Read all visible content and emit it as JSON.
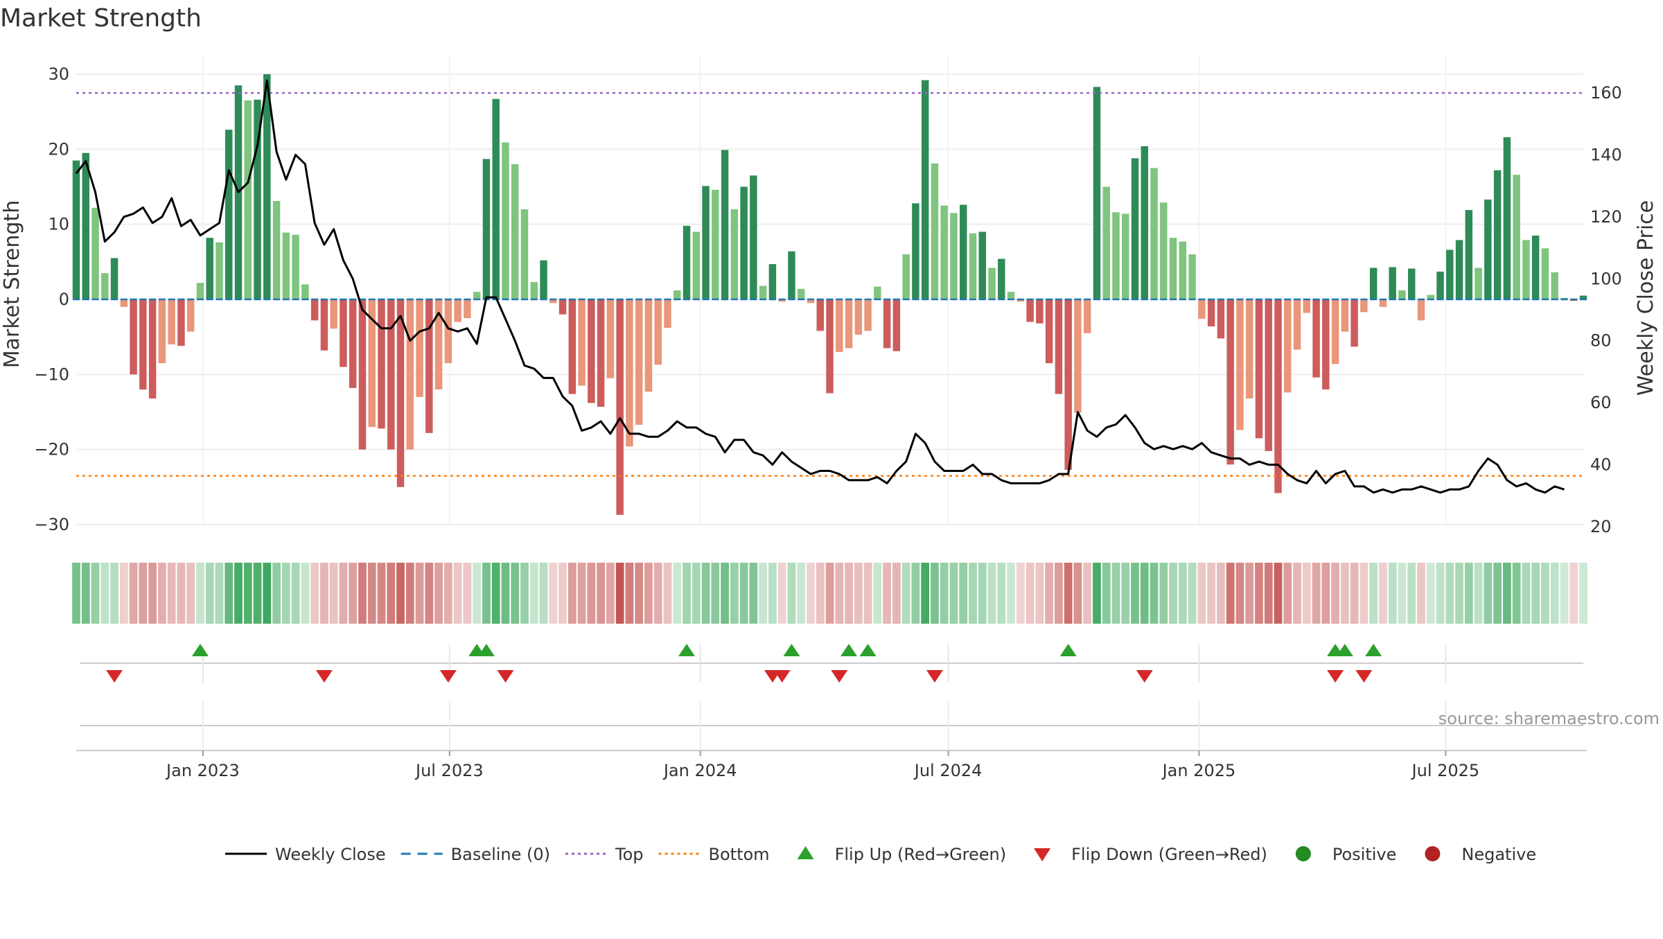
{
  "chart_data": {
    "type": "bar",
    "title": "Market Strength",
    "ylabel": "Market Strength",
    "y2label": "Weekly Close Price",
    "ylim": [
      -33,
      32
    ],
    "y2lim": [
      19,
      172
    ],
    "yticks": [
      30,
      20,
      10,
      0,
      -10,
      -20,
      -30
    ],
    "y2ticks": [
      160,
      140,
      120,
      100,
      80,
      60,
      40,
      20
    ],
    "top_line": 27.5,
    "bottom_line": -23.5,
    "x_start": "2022-09-30",
    "x_end": "2025-10-10",
    "xticks": [
      {
        "date": "2023-01-01",
        "label": "Jan 2023"
      },
      {
        "date": "2023-07-01",
        "label": "Jul 2023"
      },
      {
        "date": "2024-01-01",
        "label": "Jan 2024"
      },
      {
        "date": "2024-07-01",
        "label": "Jul 2024"
      },
      {
        "date": "2025-01-01",
        "label": "Jan 2025"
      },
      {
        "date": "2025-07-01",
        "label": "Jul 2025"
      }
    ],
    "weeks": [
      "2022-09-30",
      "2022-10-07",
      "2022-10-14",
      "2022-10-21",
      "2022-10-28",
      "2022-11-04",
      "2022-11-11",
      "2022-11-18",
      "2022-11-25",
      "2022-12-02",
      "2022-12-09",
      "2022-12-16",
      "2022-12-23",
      "2022-12-30",
      "2023-01-06",
      "2023-01-13",
      "2023-01-20",
      "2023-01-27",
      "2023-02-03",
      "2023-02-10",
      "2023-02-17",
      "2023-02-24",
      "2023-03-03",
      "2023-03-10",
      "2023-03-17",
      "2023-03-24",
      "2023-03-31",
      "2023-04-07",
      "2023-04-14",
      "2023-04-21",
      "2023-04-28",
      "2023-05-05",
      "2023-05-12",
      "2023-05-19",
      "2023-05-26",
      "2023-06-02",
      "2023-06-09",
      "2023-06-16",
      "2023-06-23",
      "2023-06-30",
      "2023-07-07",
      "2023-07-14",
      "2023-07-21",
      "2023-07-28",
      "2023-08-04",
      "2023-08-11",
      "2023-08-18",
      "2023-08-25",
      "2023-09-01",
      "2023-09-08",
      "2023-09-15",
      "2023-09-22",
      "2023-09-29",
      "2023-10-06",
      "2023-10-13",
      "2023-10-20",
      "2023-10-27",
      "2023-11-03",
      "2023-11-10",
      "2023-11-17",
      "2023-11-24",
      "2023-12-01",
      "2023-12-08",
      "2023-12-15",
      "2023-12-22",
      "2023-12-29",
      "2024-01-05",
      "2024-01-12",
      "2024-01-19",
      "2024-01-26",
      "2024-02-02",
      "2024-02-09",
      "2024-02-16",
      "2024-02-23",
      "2024-03-01",
      "2024-03-08",
      "2024-03-15",
      "2024-03-22",
      "2024-03-29",
      "2024-04-05",
      "2024-04-12",
      "2024-04-19",
      "2024-04-26",
      "2024-05-03",
      "2024-05-10",
      "2024-05-17",
      "2024-05-24",
      "2024-05-31",
      "2024-06-07",
      "2024-06-14",
      "2024-06-21",
      "2024-06-28",
      "2024-07-05",
      "2024-07-12",
      "2024-07-19",
      "2024-07-26",
      "2024-08-02",
      "2024-08-09",
      "2024-08-16",
      "2024-08-23",
      "2024-08-30",
      "2024-09-06",
      "2024-09-13",
      "2024-09-20",
      "2024-09-27",
      "2024-10-04",
      "2024-10-11",
      "2024-10-18",
      "2024-10-25",
      "2024-11-01",
      "2024-11-08",
      "2024-11-15",
      "2024-11-22",
      "2024-11-29",
      "2024-12-06",
      "2024-12-13",
      "2024-12-20",
      "2024-12-27",
      "2025-01-03",
      "2025-01-10",
      "2025-01-17",
      "2025-01-24",
      "2025-01-31",
      "2025-02-07",
      "2025-02-14",
      "2025-02-21",
      "2025-02-28",
      "2025-03-07",
      "2025-03-14",
      "2025-03-21",
      "2025-03-28",
      "2025-04-04",
      "2025-04-11",
      "2025-04-18",
      "2025-04-25",
      "2025-05-02",
      "2025-05-09",
      "2025-05-16",
      "2025-05-23",
      "2025-05-30",
      "2025-06-06",
      "2025-06-13",
      "2025-06-20",
      "2025-06-27",
      "2025-07-04",
      "2025-07-11",
      "2025-07-18",
      "2025-07-25",
      "2025-08-01",
      "2025-08-08",
      "2025-08-15",
      "2025-08-22",
      "2025-08-29",
      "2025-09-05",
      "2025-09-12",
      "2025-09-19",
      "2025-09-26",
      "2025-10-03",
      "2025-10-10"
    ],
    "strength": [
      18.5,
      19.5,
      12.2,
      3.5,
      5.5,
      -1,
      -10,
      -12,
      -13.2,
      -8.5,
      -6,
      -6.2,
      -4.3,
      2.2,
      8.2,
      7.6,
      22.6,
      28.5,
      26.5,
      26.6,
      30,
      13.1,
      8.9,
      8.6,
      2,
      -2.8,
      -6.8,
      -3.9,
      -9,
      -11.8,
      -20,
      -17,
      -17.2,
      -20,
      -25,
      -20,
      -13,
      -17.8,
      -12,
      -8.5,
      -3,
      -2.5,
      1,
      18.7,
      26.7,
      20.9,
      18,
      12,
      2.3,
      5.2,
      -0.5,
      -2,
      -12.6,
      -11.5,
      -13.8,
      -14.3,
      -10.5,
      -28.7,
      -19.6,
      -16.7,
      -12.3,
      -8.7,
      -3.8,
      1.2,
      9.8,
      9,
      15.1,
      14.6,
      19.9,
      12,
      15,
      16.5,
      1.8,
      4.7,
      -0.3,
      6.4,
      1.4,
      -0.5,
      -4.2,
      -12.5,
      -7,
      -6.5,
      -4.7,
      -4.2,
      1.7,
      -6.5,
      -6.9,
      6,
      12.8,
      29.2,
      18.1,
      12.5,
      11.5,
      12.6,
      8.8,
      9,
      4.2,
      5.4,
      1,
      -0.3,
      -3,
      -3.2,
      -8.5,
      -12.6,
      -22.7,
      -15.1,
      -4.5,
      28.3,
      15,
      11.6,
      11.4,
      18.8,
      20.4,
      17.5,
      12.9,
      8.2,
      7.7,
      6,
      -2.6,
      -3.6,
      -5.2,
      -22,
      -17.4,
      -13.2,
      -18.5,
      -20.2,
      -25.8,
      -12.4,
      -6.7,
      -1.8,
      -10.4,
      -12,
      -8.6,
      -4.3,
      -6.3,
      -1.7,
      4.2,
      -1,
      4.3,
      1.2,
      4.1,
      -2.8,
      0.6,
      3.7,
      6.6,
      7.9,
      11.9,
      4.2,
      13.3,
      17.2,
      21.6,
      16.6,
      7.9,
      8.5,
      6.8,
      3.6,
      0.2,
      -0.2,
      0.5
    ],
    "price": [
      134,
      138,
      128,
      112,
      115,
      120,
      121,
      123,
      118,
      120,
      126,
      117,
      119,
      114,
      116,
      118,
      135,
      128,
      131,
      143,
      164,
      141,
      132,
      140,
      137,
      118,
      111,
      116,
      106,
      100,
      90,
      87,
      84,
      84,
      88,
      80,
      83,
      84,
      89,
      84,
      83,
      84,
      79,
      94,
      94,
      87,
      80,
      72,
      71,
      68,
      68,
      62,
      59,
      51,
      52,
      54,
      50,
      55,
      50,
      50,
      49,
      49,
      51,
      54,
      52,
      52,
      50,
      49,
      44,
      48,
      48,
      44,
      43,
      40,
      44,
      41,
      39,
      37,
      38,
      38,
      37,
      35,
      35,
      35,
      36,
      34,
      38,
      41,
      50,
      47,
      41,
      38,
      38,
      38,
      40,
      37,
      37,
      35,
      34,
      34,
      34,
      34,
      35,
      37,
      37,
      57,
      51,
      49,
      52,
      53,
      56,
      52,
      47,
      45,
      46,
      45,
      46,
      45,
      47,
      44,
      43,
      42,
      42,
      40,
      41,
      40,
      40,
      37,
      35,
      34,
      38,
      34,
      37,
      38,
      33,
      33,
      31,
      32,
      31,
      32,
      32,
      33,
      32,
      31,
      32,
      32,
      33,
      38,
      42,
      40,
      35,
      33,
      34,
      32,
      31,
      33,
      32
    ],
    "flips_up": [
      "2022-12-30",
      "2023-07-21",
      "2023-07-28",
      "2023-12-22",
      "2024-03-08",
      "2024-04-19",
      "2024-05-03",
      "2024-09-27",
      "2025-04-11",
      "2025-04-18",
      "2025-05-09"
    ],
    "flips_down": [
      "2022-10-28",
      "2023-03-31",
      "2023-06-30",
      "2023-08-11",
      "2024-02-23",
      "2024-03-01",
      "2024-04-12",
      "2024-06-21",
      "2024-11-22",
      "2025-04-11",
      "2025-05-02"
    ],
    "colors": {
      "strong_pos": "#2e8b57",
      "weak_pos": "#7fc47f",
      "strong_neg": "#cd5c5c",
      "weak_neg": "#e9967a",
      "price_line": "#000000",
      "baseline": "#1f77b4",
      "top": "#9467bd",
      "bottom": "#ff7f0e",
      "flip_up": "#2ca02c",
      "flip_down": "#d62728",
      "positive": "#228b22",
      "negative": "#b22222"
    }
  },
  "legend": [
    {
      "label": "Weekly Close",
      "kind": "line",
      "color": "#000000"
    },
    {
      "label": "Baseline (0)",
      "kind": "dash",
      "color": "#1f77b4"
    },
    {
      "label": "Top",
      "kind": "dot",
      "color": "#9467bd"
    },
    {
      "label": "Bottom",
      "kind": "dot",
      "color": "#ff7f0e"
    },
    {
      "label": "Flip Up (Red→Green)",
      "kind": "tri-up",
      "color": "#2ca02c"
    },
    {
      "label": "Flip Down (Green→Red)",
      "kind": "tri-down",
      "color": "#d62728"
    },
    {
      "label": "Positive",
      "kind": "circle",
      "color": "#228b22"
    },
    {
      "label": "Negative",
      "kind": "circle",
      "color": "#b22222"
    }
  ],
  "source": "source: sharemaestro.com"
}
